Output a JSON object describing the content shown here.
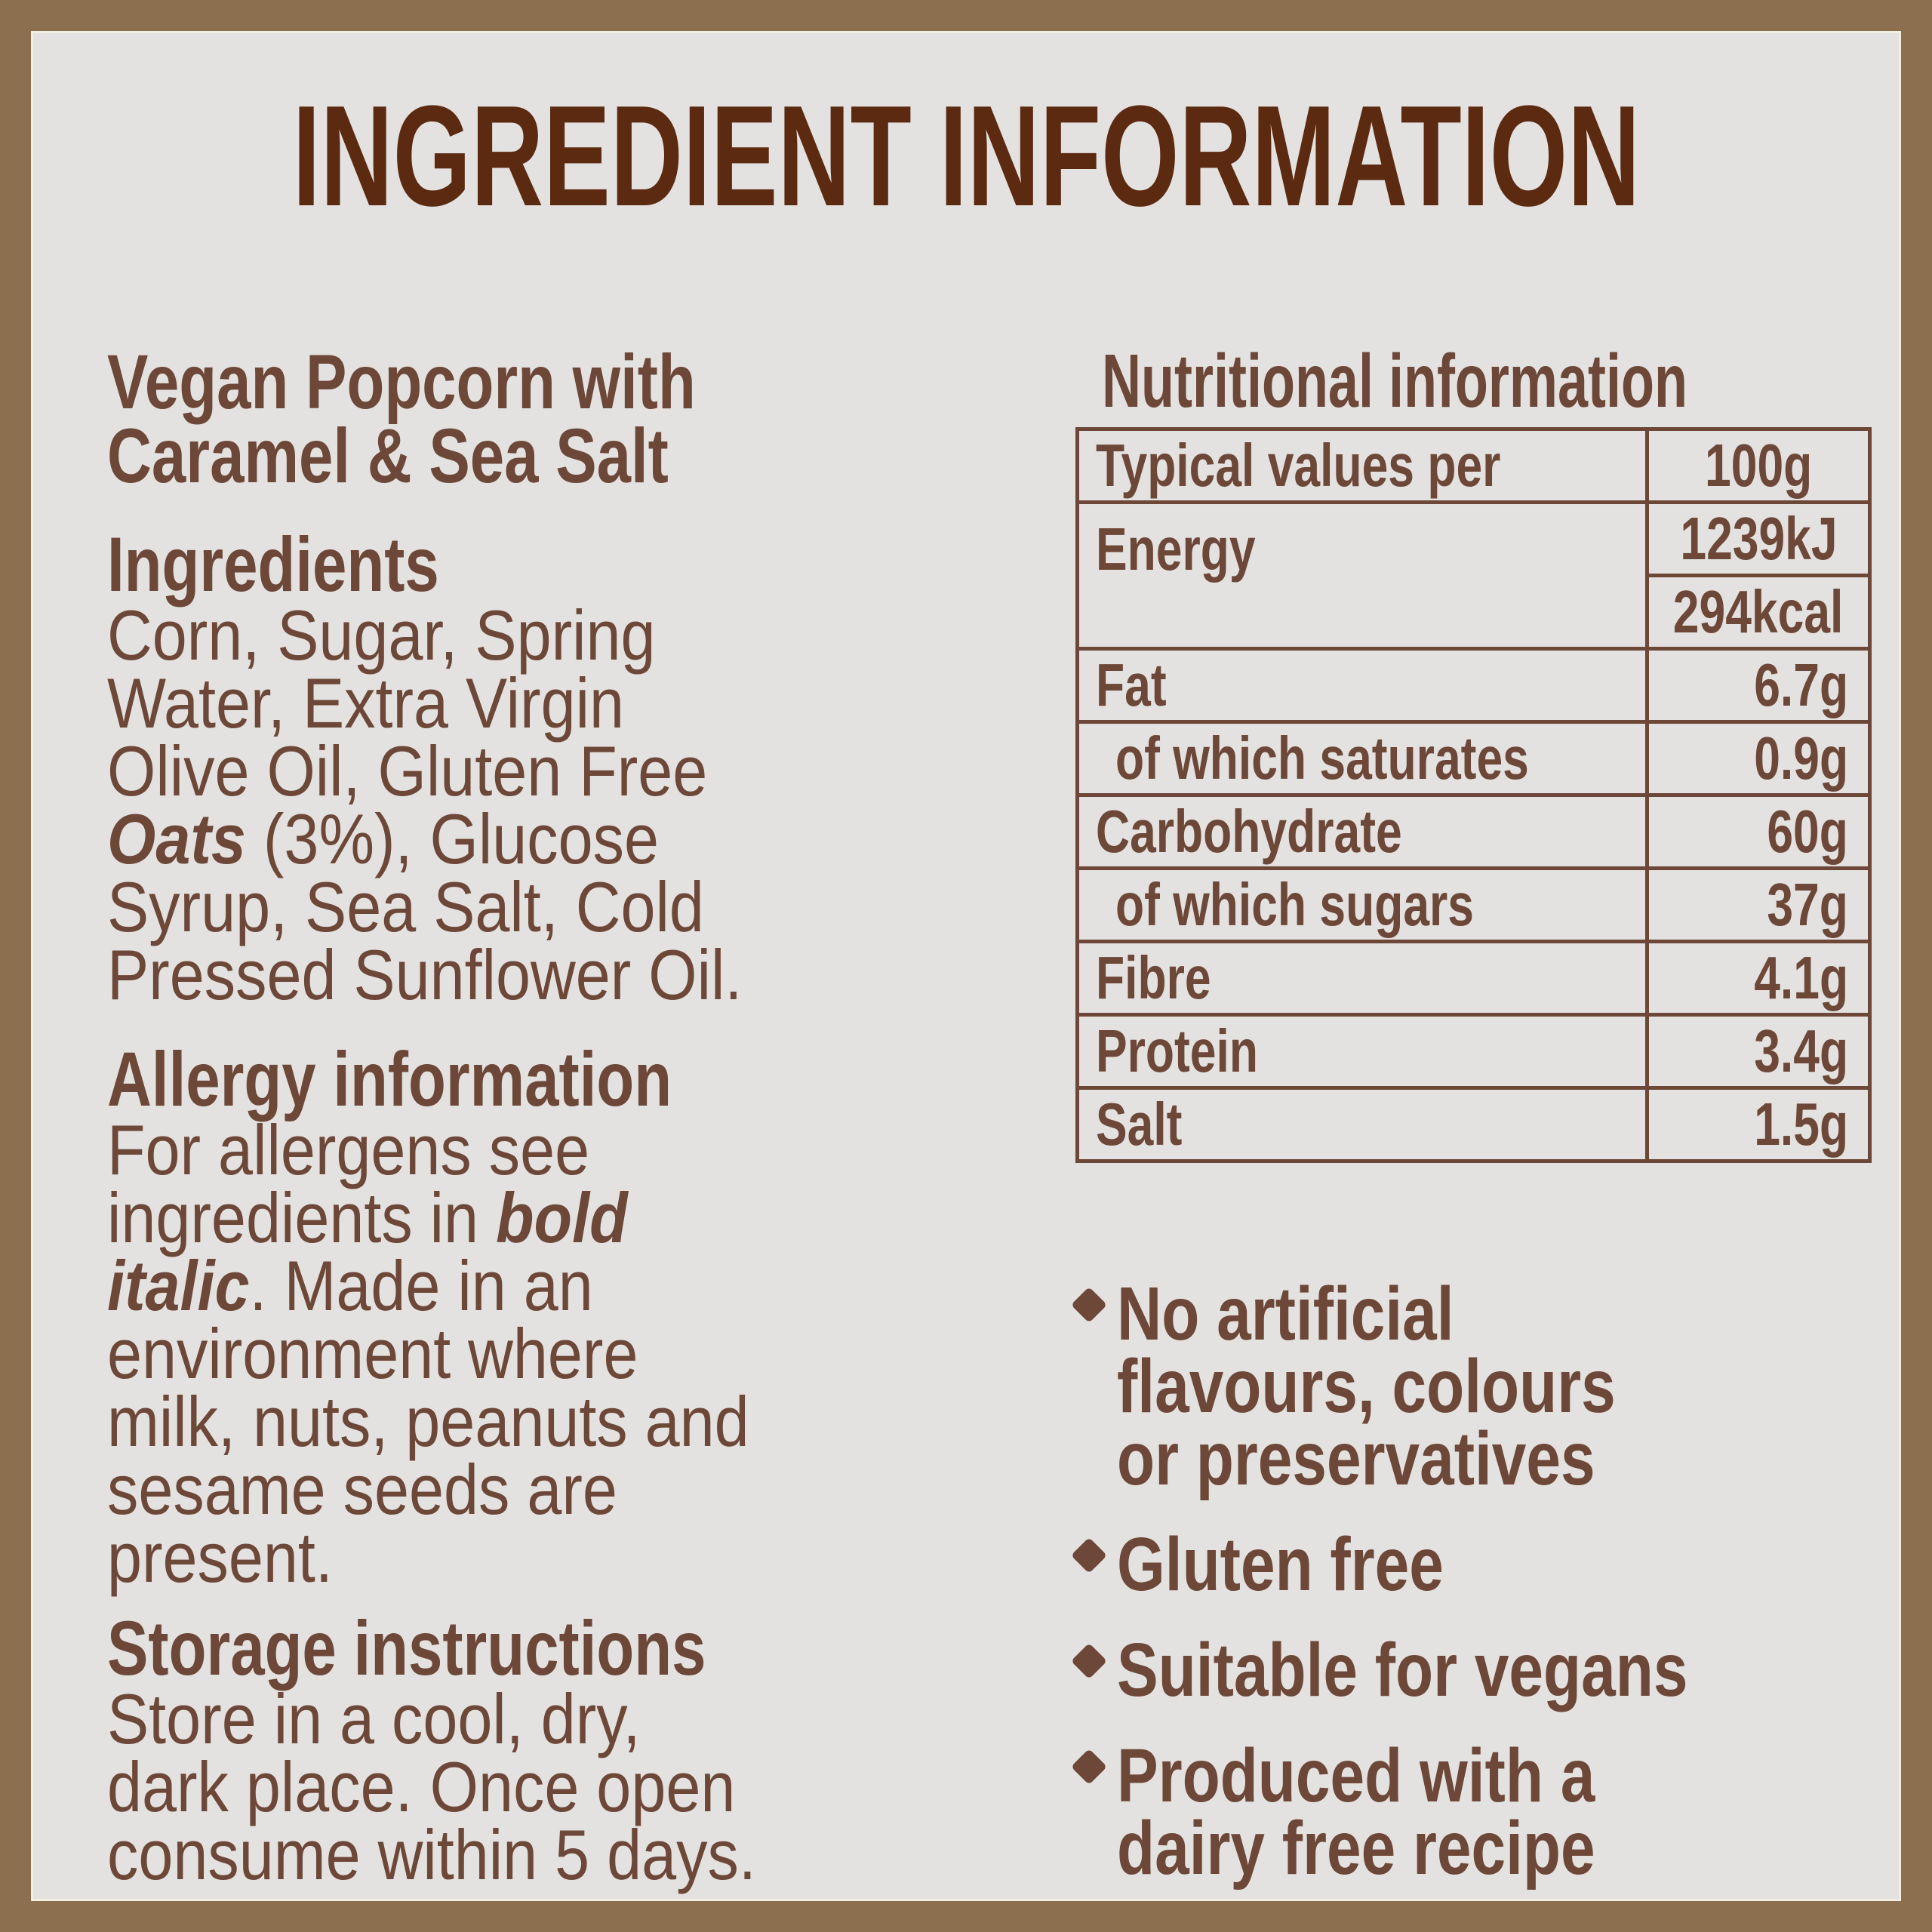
{
  "page": {
    "title": "INGREDIENT INFORMATION"
  },
  "colors": {
    "frame": "#8B6F4E",
    "background": "#E3E2E0",
    "inner_line": "#F3EEE2",
    "title_text": "#5B2A10",
    "body_text": "#6D4737"
  },
  "left": {
    "product_title": [
      "Vegan Popcorn with",
      "Caramel & Sea Salt"
    ],
    "ingredients": {
      "heading": "Ingredients",
      "lines": [
        "Corn, Sugar, Spring",
        "Water, Extra Virgin",
        "Olive Oil, Gluten Free",
        [
          {
            "text": "Oats",
            "em": true
          },
          {
            "text": " (3%), Glucose"
          }
        ],
        "Syrup, Sea Salt, Cold",
        "Pressed Sunflower Oil."
      ]
    },
    "allergy": {
      "heading": "Allergy information",
      "lines": [
        "For allergens see",
        [
          {
            "text": "ingredients in "
          },
          {
            "text": "bold",
            "em": true
          }
        ],
        [
          {
            "text": "italic",
            "em": true
          },
          {
            "text": ". Made in an"
          }
        ],
        "environment where",
        "milk, nuts, peanuts and",
        "sesame seeds are",
        "present."
      ]
    },
    "storage": {
      "heading": "Storage instructions",
      "lines": [
        "Store in a cool, dry,",
        "dark place. Once open",
        "consume within 5 days."
      ]
    }
  },
  "nutrition": {
    "heading": "Nutritional information",
    "header": {
      "label": "Typical values per",
      "value": "100g"
    },
    "energy": {
      "label": "Energy",
      "kj": "1239kJ",
      "kcal": "294kcal"
    },
    "rows": [
      {
        "label": "Fat",
        "value": "6.7g",
        "indent": false
      },
      {
        "label": "of which saturates",
        "value": "0.9g",
        "indent": true
      },
      {
        "label": "Carbohydrate",
        "value": "60g",
        "indent": false
      },
      {
        "label": "of which sugars",
        "value": "37g",
        "indent": true
      },
      {
        "label": "Fibre",
        "value": "4.1g",
        "indent": false
      },
      {
        "label": "Protein",
        "value": "3.4g",
        "indent": false
      },
      {
        "label": "Salt",
        "value": "1.5g",
        "indent": false
      }
    ]
  },
  "bullets": {
    "marker_icon": "diamond",
    "items": [
      {
        "lines": [
          "No artificial",
          "flavours, colours",
          "or preservatives"
        ]
      },
      {
        "lines": [
          "Gluten free"
        ]
      },
      {
        "lines": [
          "Suitable for vegans"
        ]
      },
      {
        "lines": [
          "Produced with a",
          "dairy free recipe"
        ]
      }
    ]
  }
}
